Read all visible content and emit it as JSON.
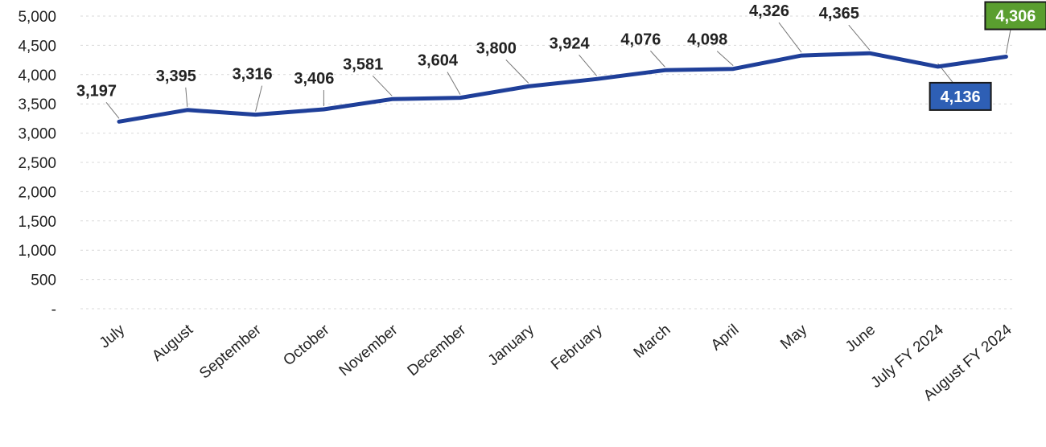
{
  "chart_data": {
    "type": "line",
    "title": "",
    "xlabel": "",
    "ylabel": "",
    "ylim": [
      0,
      5000
    ],
    "yticks": [
      0,
      500,
      1000,
      1500,
      2000,
      2500,
      3000,
      3500,
      4000,
      4500,
      5000
    ],
    "ytick_labels": [
      "-",
      "500",
      "1,000",
      "1,500",
      "2,000",
      "2,500",
      "3,000",
      "3,500",
      "4,000",
      "4,500",
      "5,000"
    ],
    "grid": true,
    "legend": "none",
    "categories": [
      "July",
      "August",
      "September",
      "October",
      "November",
      "December",
      "January",
      "February",
      "March",
      "April",
      "May",
      "June",
      "July FY 2024",
      "August FY 2024"
    ],
    "series": [
      {
        "values": [
          3197,
          3395,
          3316,
          3406,
          3581,
          3604,
          3800,
          3924,
          4076,
          4098,
          4326,
          4365,
          4136,
          4306
        ],
        "color": "#1f3f99"
      }
    ],
    "data_labels": [
      "3,197",
      "3,395",
      "3,316",
      "3,406",
      "3,581",
      "3,604",
      "3,800",
      "3,924",
      "4,076",
      "4,098",
      "4,326",
      "4,365",
      "4,136",
      "4,306"
    ],
    "highlighted_labels": [
      {
        "index": 12,
        "background": "#2e5fb5"
      },
      {
        "index": 13,
        "background": "#5a9e2f"
      }
    ]
  }
}
